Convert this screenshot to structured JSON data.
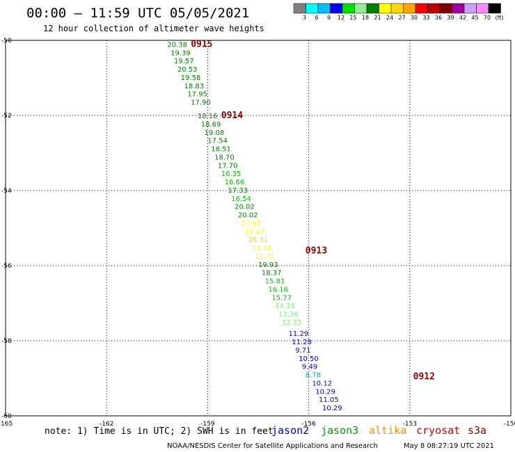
{
  "header": {
    "title": "00:00 – 11:59 UTC 05/05/2021",
    "subtitle": "12 hour collection of altimeter wave heights"
  },
  "legend": {
    "swatches": [
      "#808080",
      "#00ffff",
      "#00bfff",
      "#0000ff",
      "#00e000",
      "#90ee90",
      "#008000",
      "#ffff00",
      "#ffd700",
      "#ffa500",
      "#ff0000",
      "#c00000",
      "#800000",
      "#a000a0",
      "#c8a0ff",
      "#ff88ff",
      "#000000"
    ],
    "labels": [
      "3",
      "6",
      "9",
      "12",
      "15",
      "18",
      "21",
      "24",
      "27",
      "30",
      "33",
      "36",
      "39",
      "42",
      "45",
      "70",
      "(ft)"
    ]
  },
  "footer": {
    "note": "note: 1) Time is in UTC; 2) SWH is in feet",
    "credit": "NOAA/NESDIS Center for Satellite Applications and Research",
    "timestamp": "May  8 08:27:19 UTC 2021",
    "satellites": [
      {
        "name": "jason2",
        "color": "#0000cc"
      },
      {
        "name": "jason3",
        "color": "#00a000"
      },
      {
        "name": "altika",
        "color": "#ff8c00"
      },
      {
        "name": "cryosat",
        "color": "#dd0000"
      },
      {
        "name": "s3a",
        "color": "#8b0000"
      }
    ]
  },
  "chart_data": {
    "type": "scatter",
    "title": "00:00 – 11:59 UTC 05/05/2021",
    "subtitle": "12 hour collection of altimeter wave heights",
    "xlim": [
      -165,
      -150
    ],
    "ylim": [
      -60,
      -50
    ],
    "x_ticks": [
      "-165",
      "-162",
      "-159",
      "-156",
      "-153",
      "-150"
    ],
    "y_ticks": [
      "-50",
      "-52",
      "-54",
      "-56",
      "-58",
      "-60"
    ],
    "grid": true,
    "y_ticks_labels_pos": [
      -50,
      -52,
      -54,
      -56,
      -58,
      -60
    ],
    "time_labels": [
      {
        "label": "0915",
        "lon": -159.5,
        "lat": -50.1
      },
      {
        "label": "0914",
        "lon": -158.6,
        "lat": -52.0
      },
      {
        "label": "0913",
        "lon": -156.1,
        "lat": -55.6
      },
      {
        "label": "0912",
        "lon": -152.9,
        "lat": -58.95
      }
    ],
    "points": [
      {
        "lon": -160.2,
        "lat": -50.1,
        "swh": "20.38",
        "color": "#008000"
      },
      {
        "lon": -160.1,
        "lat": -50.32,
        "swh": "19.39",
        "color": "#008000"
      },
      {
        "lon": -160.0,
        "lat": -50.54,
        "swh": "19.57",
        "color": "#008000"
      },
      {
        "lon": -159.9,
        "lat": -50.76,
        "swh": "20.53",
        "color": "#008000"
      },
      {
        "lon": -159.8,
        "lat": -50.98,
        "swh": "19.58",
        "color": "#008000"
      },
      {
        "lon": -159.7,
        "lat": -51.2,
        "swh": "18.83",
        "color": "#008000"
      },
      {
        "lon": -159.6,
        "lat": -51.42,
        "swh": "17.95",
        "color": "#008000"
      },
      {
        "lon": -159.5,
        "lat": -51.64,
        "swh": "17.90",
        "color": "#008000"
      },
      {
        "lon": -159.3,
        "lat": -52.0,
        "swh": "18.16",
        "color": "#008000"
      },
      {
        "lon": -159.2,
        "lat": -52.22,
        "swh": "18.69",
        "color": "#008000"
      },
      {
        "lon": -159.1,
        "lat": -52.44,
        "swh": "19.08",
        "color": "#008000"
      },
      {
        "lon": -159.0,
        "lat": -52.66,
        "swh": "17.54",
        "color": "#008000"
      },
      {
        "lon": -158.9,
        "lat": -52.88,
        "swh": "18.51",
        "color": "#008000"
      },
      {
        "lon": -158.8,
        "lat": -53.1,
        "swh": "18.70",
        "color": "#008000"
      },
      {
        "lon": -158.7,
        "lat": -53.32,
        "swh": "17.70",
        "color": "#008000"
      },
      {
        "lon": -158.6,
        "lat": -53.54,
        "swh": "16.35",
        "color": "#00c000"
      },
      {
        "lon": -158.5,
        "lat": -53.76,
        "swh": "16.66",
        "color": "#00c000"
      },
      {
        "lon": -158.4,
        "lat": -53.98,
        "swh": "17.33",
        "color": "#008000"
      },
      {
        "lon": -158.3,
        "lat": -54.2,
        "swh": "16.54",
        "color": "#00c000"
      },
      {
        "lon": -158.2,
        "lat": -54.42,
        "swh": "20.02",
        "color": "#008000"
      },
      {
        "lon": -158.1,
        "lat": -54.64,
        "swh": "20.02",
        "color": "#008000"
      },
      {
        "lon": -158.0,
        "lat": -54.86,
        "swh": "22.42",
        "color": "#ffff00"
      },
      {
        "lon": -157.9,
        "lat": -55.08,
        "swh": "23.47",
        "color": "#ffff00"
      },
      {
        "lon": -157.8,
        "lat": -55.3,
        "swh": "26.31",
        "color": "#ffd700"
      },
      {
        "lon": -157.7,
        "lat": -55.52,
        "swh": "23.38",
        "color": "#ffff00"
      },
      {
        "lon": -157.6,
        "lat": -55.74,
        "swh": "21.75",
        "color": "#ffff00"
      },
      {
        "lon": -157.5,
        "lat": -55.96,
        "swh": "19.93",
        "color": "#008000"
      },
      {
        "lon": -157.4,
        "lat": -56.18,
        "swh": "18.37",
        "color": "#008000"
      },
      {
        "lon": -157.3,
        "lat": -56.4,
        "swh": "15.81",
        "color": "#00c000"
      },
      {
        "lon": -157.2,
        "lat": -56.62,
        "swh": "16.16",
        "color": "#00c000"
      },
      {
        "lon": -157.1,
        "lat": -56.84,
        "swh": "15.77",
        "color": "#00c000"
      },
      {
        "lon": -157.0,
        "lat": -57.06,
        "swh": "14.35",
        "color": "#80ee80"
      },
      {
        "lon": -156.9,
        "lat": -57.28,
        "swh": "13.36",
        "color": "#80ee80"
      },
      {
        "lon": -156.8,
        "lat": -57.5,
        "swh": "12.33",
        "color": "#80ee80"
      },
      {
        "lon": -156.6,
        "lat": -57.8,
        "swh": "11.29",
        "color": "#0000cc"
      },
      {
        "lon": -156.5,
        "lat": -58.02,
        "swh": "11.28",
        "color": "#0000cc"
      },
      {
        "lon": -156.4,
        "lat": -58.24,
        "swh": "9.71",
        "color": "#0000cc"
      },
      {
        "lon": -156.3,
        "lat": -58.46,
        "swh": "10.50",
        "color": "#0000cc"
      },
      {
        "lon": -156.2,
        "lat": -58.68,
        "swh": "9.49",
        "color": "#0000cc"
      },
      {
        "lon": -156.1,
        "lat": -58.9,
        "swh": "8.78",
        "color": "#00a0d0"
      },
      {
        "lon": -155.9,
        "lat": -59.12,
        "swh": "10.12",
        "color": "#0000cc"
      },
      {
        "lon": -155.8,
        "lat": -59.34,
        "swh": "10.29",
        "color": "#0000cc"
      },
      {
        "lon": -155.7,
        "lat": -59.56,
        "swh": "11.05",
        "color": "#0000cc"
      },
      {
        "lon": -155.6,
        "lat": -59.78,
        "swh": "10.29",
        "color": "#0000cc"
      }
    ]
  }
}
